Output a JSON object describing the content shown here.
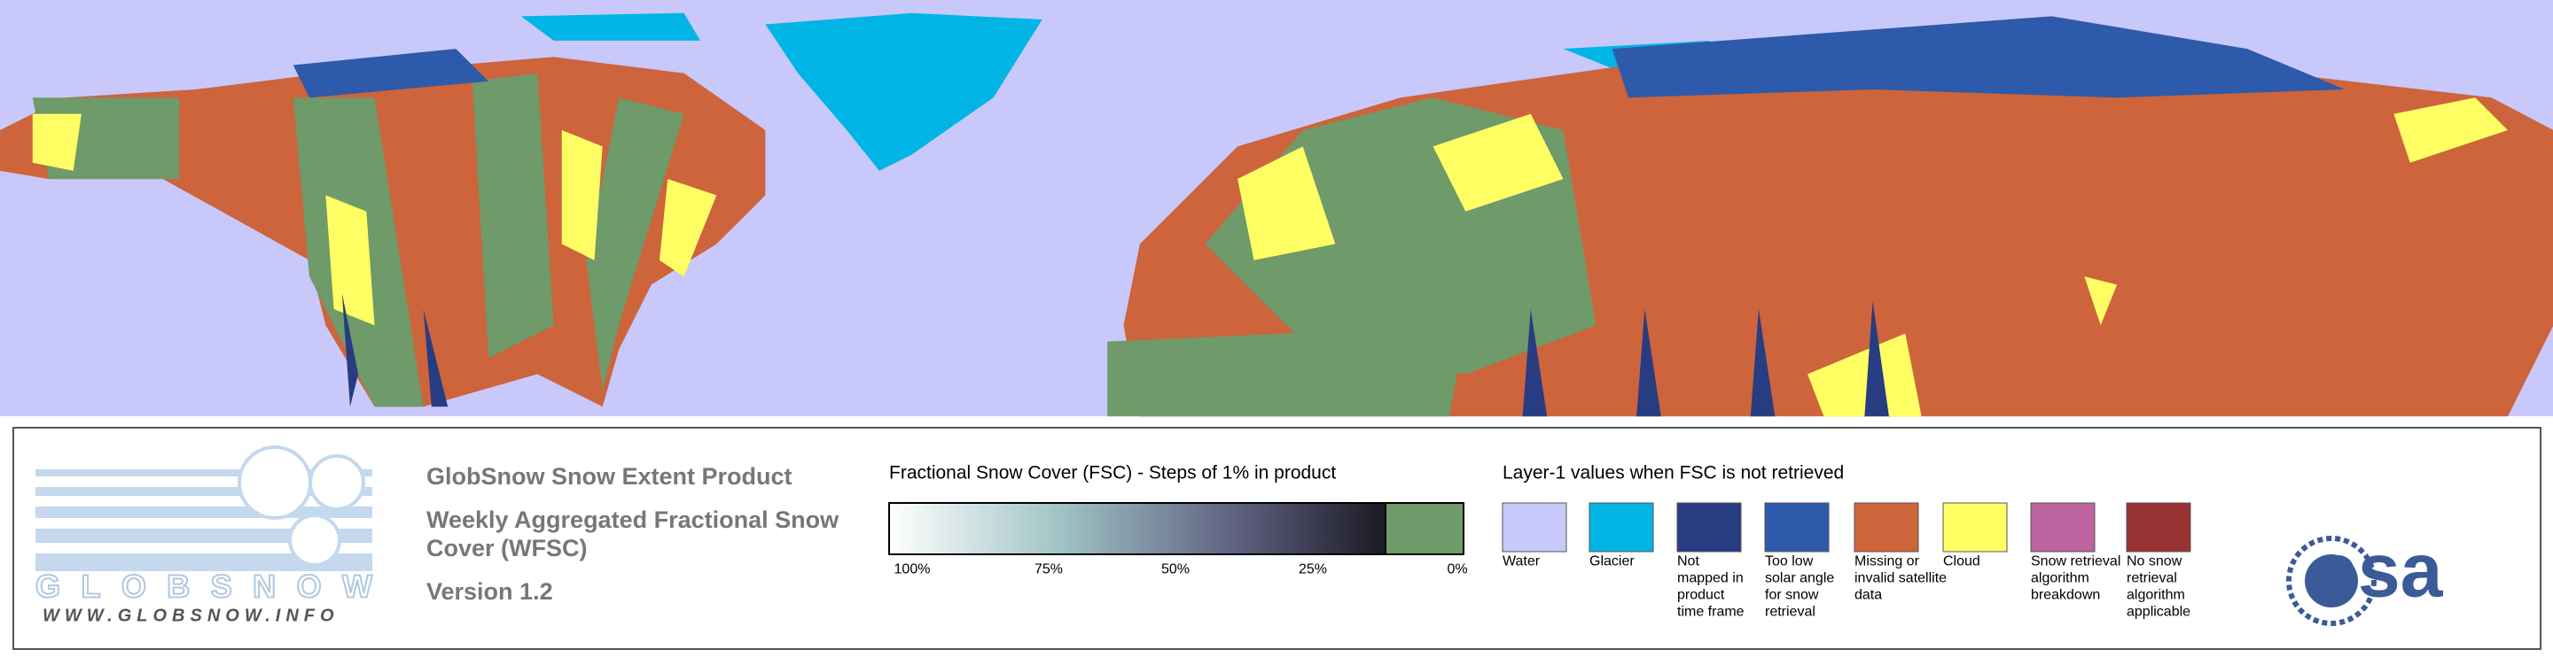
{
  "map": {
    "description": "Weekly snow cover map of the Northern Hemisphere"
  },
  "logo": {
    "name": "GLOBSNOW",
    "url": "WWW.GLOBSNOW.INFO"
  },
  "header": {
    "title": "GlobSnow Snow Extent Product",
    "subtitle_lines": [
      "Weekly Aggregated Fractional Snow",
      "Cover (WFSC)"
    ],
    "version": "Version 1.2"
  },
  "fsc_legend": {
    "title": "Fractional Snow Cover (FSC) - Steps of 1% in product",
    "labels": [
      "100%",
      "75%",
      "50%",
      "25%",
      "0%"
    ],
    "no_snow_color": "#6f9a6a"
  },
  "layer1_legend": {
    "title": "Layer-1 values when FSC is not retrieved",
    "items": [
      {
        "color": "#c8c8fa",
        "lines": [
          "Water"
        ]
      },
      {
        "color": "#00b4e6",
        "lines": [
          "Glacier"
        ]
      },
      {
        "color": "#283c82",
        "lines": [
          "Not",
          "mapped in",
          "product",
          "time frame"
        ]
      },
      {
        "color": "#2d5aaa",
        "lines": [
          "Too low",
          "solar angle",
          "for snow",
          "retrieval"
        ]
      },
      {
        "color": "#cd643c",
        "lines": [
          "Missing or",
          "invalid satellite",
          "data"
        ]
      },
      {
        "color": "#ffff64",
        "lines": [
          "Cloud"
        ]
      },
      {
        "color": "#be64a0",
        "lines": [
          "Snow retrieval",
          "algorithm",
          "breakdown"
        ]
      },
      {
        "color": "#963232",
        "lines": [
          "No snow",
          "retrieval",
          "algorithm",
          "applicable"
        ]
      }
    ]
  },
  "esa_logo": "esa"
}
